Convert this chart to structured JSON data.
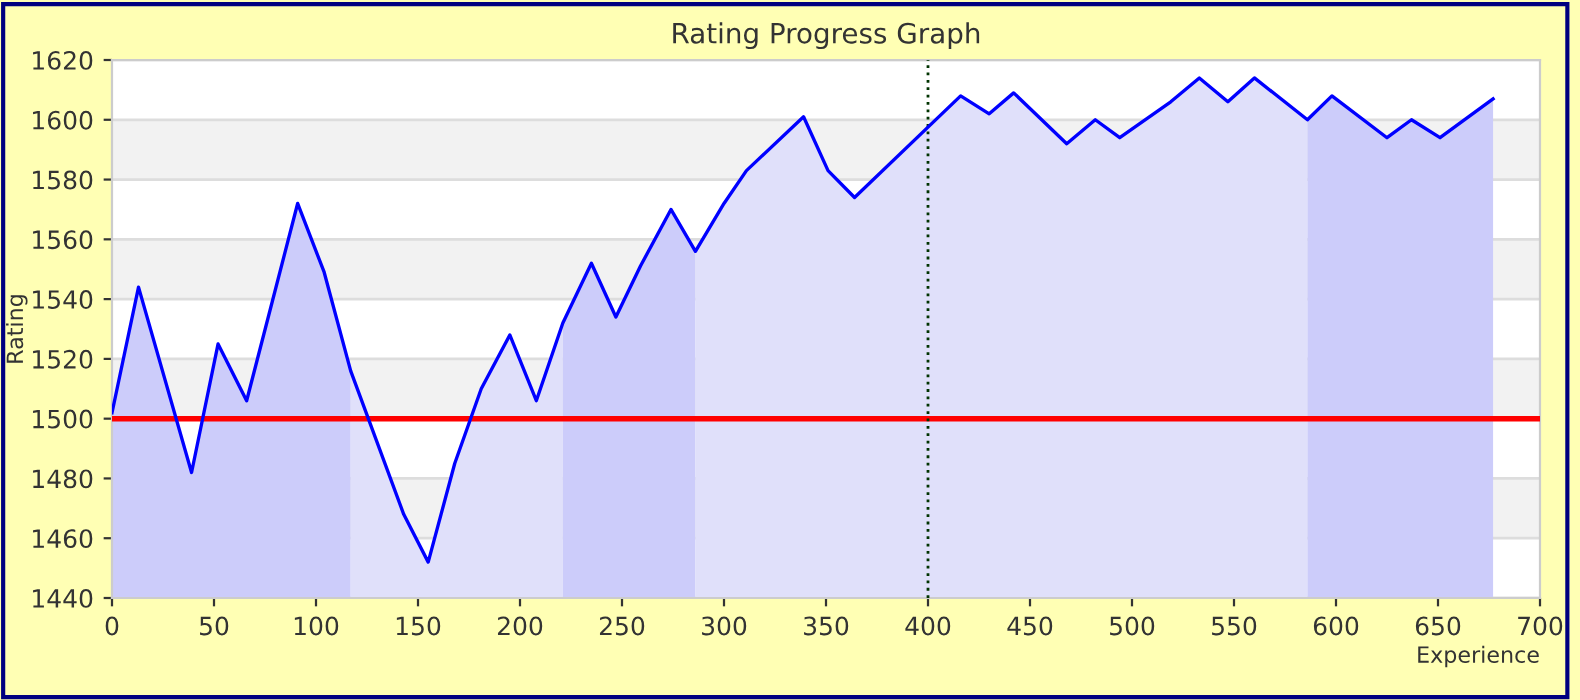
{
  "chart_data": {
    "type": "line",
    "title": "Rating Progress Graph",
    "xlabel": "Experience",
    "ylabel": "Rating",
    "xlim": [
      0,
      700
    ],
    "xticks": [
      0,
      50,
      100,
      150,
      200,
      250,
      300,
      350,
      400,
      450,
      500,
      550,
      600,
      650,
      700
    ],
    "ylim": [
      1440,
      1620
    ],
    "yticks": [
      1440,
      1460,
      1480,
      1500,
      1520,
      1540,
      1560,
      1580,
      1600,
      1620
    ],
    "grid": "y",
    "marker": "none",
    "line_style": "solid",
    "series": [
      {
        "type": "area",
        "color": "#ccccfa",
        "x": [
          0,
          13,
          39,
          52,
          66,
          91,
          104,
          117
        ],
        "values": [
          1502,
          1544,
          1482,
          1525,
          1506,
          1572,
          1549,
          1516
        ]
      },
      {
        "type": "area",
        "color": "#e0e0fa",
        "x": [
          117,
          143,
          155,
          168,
          181,
          195,
          208,
          221
        ],
        "values": [
          1516,
          1468,
          1452,
          1485,
          1510,
          1528,
          1506,
          1532
        ]
      },
      {
        "type": "area",
        "color": "#ccccfa",
        "x": [
          221,
          235,
          247,
          259,
          274,
          286
        ],
        "values": [
          1532,
          1552,
          1534,
          1551,
          1570,
          1556
        ]
      },
      {
        "type": "area",
        "color": "#e0e0fa",
        "x": [
          286,
          300,
          311,
          339,
          351,
          364,
          416,
          430,
          442,
          468,
          482,
          494,
          519,
          533,
          547,
          560,
          586
        ],
        "values": [
          1556,
          1572,
          1583,
          1601,
          1583,
          1574,
          1608,
          1602,
          1609,
          1592,
          1600,
          1594,
          1606,
          1614,
          1606,
          1614,
          1600
        ]
      },
      {
        "type": "area",
        "color": "#ccccfa",
        "x": [
          586,
          598,
          625,
          637,
          651,
          677
        ],
        "values": [
          1600,
          1608,
          1594,
          1600,
          1594,
          1607
        ]
      },
      {
        "color": "#0000ff",
        "x": [
          0,
          13,
          39,
          52,
          66,
          91,
          104,
          117,
          143,
          155,
          168,
          181,
          195,
          208,
          221,
          235,
          247,
          259,
          274,
          286,
          300,
          311,
          339,
          351,
          364,
          416,
          430,
          442,
          468,
          482,
          494,
          519,
          533,
          547,
          560,
          586,
          598,
          625,
          637,
          651,
          677
        ],
        "values": [
          1502,
          1544,
          1482,
          1525,
          1506,
          1572,
          1549,
          1516,
          1468,
          1452,
          1485,
          1510,
          1528,
          1506,
          1532,
          1552,
          1534,
          1551,
          1570,
          1556,
          1572,
          1583,
          1601,
          1583,
          1574,
          1608,
          1602,
          1609,
          1592,
          1600,
          1594,
          1606,
          1614,
          1606,
          1614,
          1600,
          1608,
          1594,
          1600,
          1594,
          1607
        ]
      }
    ],
    "ref_lines": [
      {
        "axis": "y",
        "value": 1500,
        "color": "#ff0000",
        "line_style": "solid"
      },
      {
        "axis": "x",
        "value": 400,
        "color": "#003300",
        "line_style": "dotted"
      }
    ]
  }
}
